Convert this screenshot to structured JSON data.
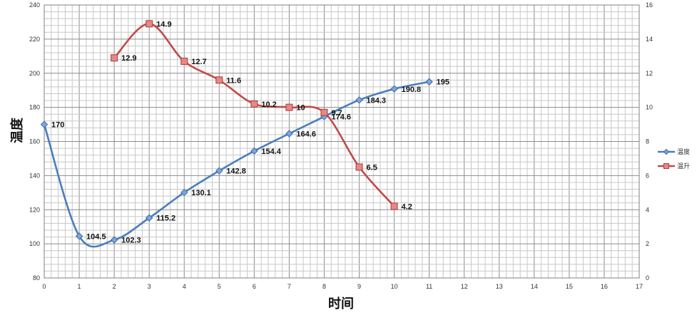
{
  "chart_data": {
    "type": "line",
    "xlabel": "时间",
    "ylabel": "温度",
    "xlim": [
      0,
      17
    ],
    "ylim": [
      80,
      240
    ],
    "y2lim": [
      0,
      16
    ],
    "x_ticks": [
      "0",
      "1",
      "2",
      "3",
      "4",
      "5",
      "6",
      "7",
      "8",
      "9",
      "10",
      "11",
      "12",
      "13",
      "14",
      "15",
      "16",
      "17"
    ],
    "y_ticks": [
      "80",
      "100",
      "120",
      "140",
      "160",
      "180",
      "200",
      "220",
      "240"
    ],
    "y2_ticks": [
      "0",
      "2",
      "4",
      "6",
      "8",
      "10",
      "12",
      "14",
      "16"
    ],
    "grid": true,
    "legend_position": "right",
    "series": [
      {
        "name": "温度",
        "axis": "left",
        "color": "#4a7ebb",
        "marker": "diamond",
        "x": [
          0,
          1,
          2,
          3,
          4,
          5,
          6,
          7,
          8,
          9,
          10,
          11
        ],
        "values": [
          170,
          104.5,
          102.3,
          115.2,
          130.1,
          142.8,
          154.4,
          164.6,
          174.6,
          184.3,
          190.8,
          195
        ],
        "labels": [
          "170",
          "104.5",
          "102.3",
          "115.2",
          "130.1",
          "142.8",
          "154.4",
          "164.6",
          "174.6",
          "184.3",
          "190.8",
          "195"
        ]
      },
      {
        "name": "温升",
        "axis": "right",
        "color": "#be4b48",
        "marker": "square",
        "x": [
          2,
          3,
          4,
          5,
          6,
          7,
          8,
          9,
          10
        ],
        "values": [
          12.9,
          14.9,
          12.7,
          11.6,
          10.2,
          10,
          9.7,
          6.5,
          4.2
        ],
        "labels": [
          "12.9",
          "14.9",
          "12.7",
          "11.6",
          "10.2",
          "10",
          "9.7",
          "6.5",
          "4.2"
        ]
      }
    ]
  }
}
